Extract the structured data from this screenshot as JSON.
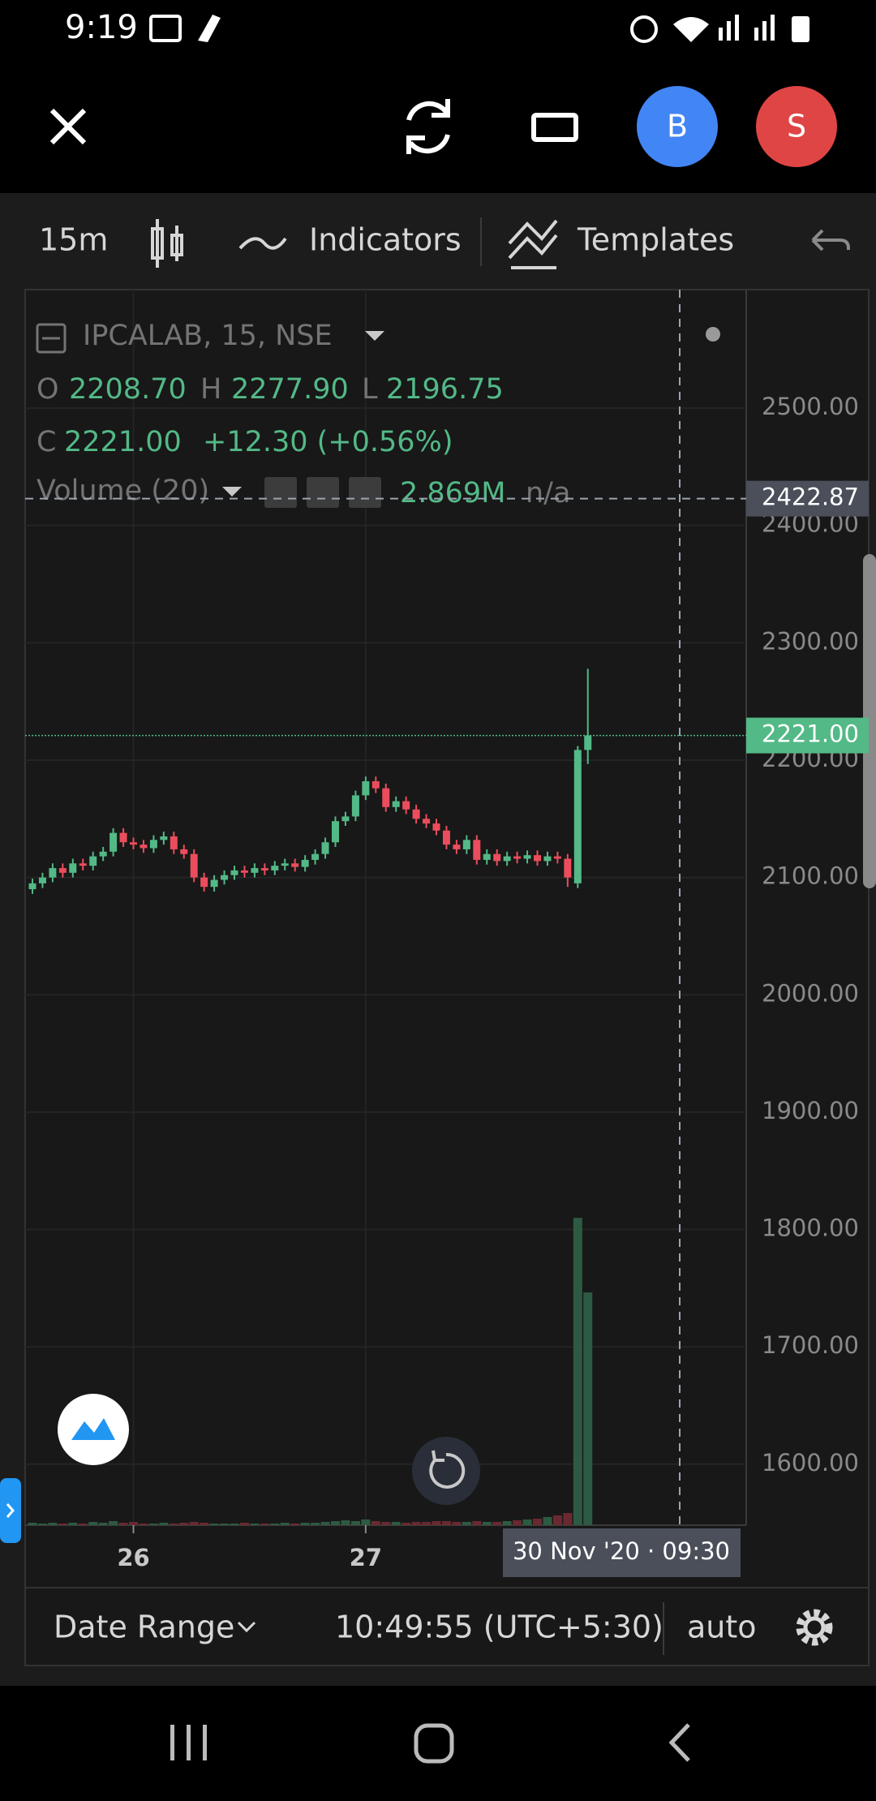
{
  "status_bar": {
    "time": "9:19"
  },
  "top_bar": {
    "avatars": [
      "B",
      "S"
    ]
  },
  "toolbar": {
    "interval": "15m",
    "indicators": "Indicators",
    "templates": "Templates"
  },
  "legend": {
    "symbol": "IPCALAB, 15, NSE",
    "ohlc": [
      {
        "label": "O",
        "value": "2208.70"
      },
      {
        "label": "H",
        "value": "2277.90"
      },
      {
        "label": "L",
        "value": "2196.75"
      },
      {
        "label": "C",
        "value": "2221.00"
      }
    ],
    "change": "+12.30 (+0.56%)",
    "volume_title": "Volume (20)",
    "volume_value": "2.869M",
    "volume_ma": "n/a"
  },
  "chart_data": {
    "type": "candlestick",
    "categories": [
      null,
      null,
      null,
      null,
      null,
      null,
      null,
      null,
      null,
      null,
      "26",
      null,
      null,
      null,
      null,
      null,
      null,
      null,
      null,
      null,
      null,
      null,
      null,
      null,
      null,
      null,
      null,
      null,
      null,
      null,
      null,
      null,
      null,
      "27",
      null,
      null,
      null,
      null,
      null,
      null,
      null,
      null,
      null,
      null,
      null,
      null,
      null,
      null,
      null,
      null,
      null,
      null,
      null,
      null,
      null,
      null
    ],
    "open": [
      2090,
      2095,
      2100,
      2108,
      2104,
      2112,
      2110,
      2118,
      2122,
      2138,
      2130,
      2128,
      2125,
      2132,
      2135,
      2124,
      2120,
      2100,
      2092,
      2098,
      2102,
      2106,
      2104,
      2108,
      2106,
      2110,
      2112,
      2109,
      2115,
      2120,
      2130,
      2148,
      2152,
      2170,
      2182,
      2176,
      2160,
      2165,
      2158,
      2150,
      2146,
      2140,
      2128,
      2124,
      2132,
      2115,
      2120,
      2114,
      2118,
      2116,
      2119,
      2114,
      2118,
      2116,
      2095,
      2208.7
    ],
    "high": [
      2099,
      2104,
      2112,
      2112,
      2116,
      2116,
      2122,
      2126,
      2142,
      2142,
      2134,
      2132,
      2136,
      2139,
      2139,
      2128,
      2124,
      2104,
      2102,
      2106,
      2110,
      2110,
      2112,
      2112,
      2114,
      2116,
      2116,
      2119,
      2124,
      2134,
      2152,
      2156,
      2174,
      2186,
      2186,
      2180,
      2169,
      2169,
      2162,
      2154,
      2150,
      2144,
      2132,
      2136,
      2136,
      2124,
      2124,
      2122,
      2122,
      2123,
      2123,
      2122,
      2122,
      2120,
      2212,
      2277.9
    ],
    "low": [
      2086,
      2091,
      2096,
      2100,
      2100,
      2106,
      2106,
      2114,
      2118,
      2126,
      2124,
      2121,
      2121,
      2128,
      2120,
      2116,
      2096,
      2088,
      2088,
      2094,
      2098,
      2100,
      2100,
      2102,
      2102,
      2106,
      2105,
      2105,
      2111,
      2116,
      2126,
      2144,
      2148,
      2166,
      2172,
      2156,
      2156,
      2154,
      2146,
      2142,
      2136,
      2124,
      2120,
      2120,
      2111,
      2111,
      2110,
      2110,
      2112,
      2112,
      2110,
      2110,
      2112,
      2092,
      2091,
      2196.75
    ],
    "close": [
      2095,
      2100,
      2108,
      2104,
      2112,
      2110,
      2118,
      2122,
      2138,
      2130,
      2128,
      2125,
      2132,
      2135,
      2124,
      2120,
      2100,
      2092,
      2098,
      2102,
      2106,
      2104,
      2108,
      2106,
      2110,
      2112,
      2109,
      2115,
      2120,
      2130,
      2148,
      2152,
      2170,
      2182,
      2176,
      2160,
      2165,
      2158,
      2150,
      2146,
      2140,
      2128,
      2124,
      2132,
      2115,
      2120,
      2114,
      2118,
      2116,
      2119,
      2114,
      2118,
      2116,
      2100,
      2208.7,
      2221
    ],
    "volume": [
      0.03,
      0.02,
      0.03,
      0.02,
      0.03,
      0.02,
      0.04,
      0.03,
      0.05,
      0.03,
      0.04,
      0.02,
      0.02,
      0.03,
      0.02,
      0.03,
      0.04,
      0.03,
      0.02,
      0.02,
      0.02,
      0.03,
      0.02,
      0.02,
      0.02,
      0.03,
      0.02,
      0.03,
      0.03,
      0.04,
      0.05,
      0.06,
      0.05,
      0.07,
      0.05,
      0.04,
      0.04,
      0.03,
      0.04,
      0.04,
      0.05,
      0.05,
      0.04,
      0.04,
      0.05,
      0.04,
      0.04,
      0.05,
      0.06,
      0.07,
      0.08,
      0.1,
      0.12,
      0.15,
      3.788,
      2.869
    ],
    "up_color": "#53b987",
    "down_color": "#eb4d5c",
    "volume_up_color": "#2d5a42",
    "volume_down_color": "#6a2930",
    "ylim": [
      1548,
      2601
    ],
    "yticks": [
      {
        "value": 1600,
        "label": "1600.00"
      },
      {
        "value": 1700,
        "label": "1700.00"
      },
      {
        "value": 1800,
        "label": "1800.00"
      },
      {
        "value": 1900,
        "label": "1900.00"
      },
      {
        "value": 2000,
        "label": "2000.00"
      },
      {
        "value": 2100,
        "label": "2100.00"
      },
      {
        "value": 2200,
        "label": "2200.00"
      },
      {
        "value": 2300,
        "label": "2300.00"
      },
      {
        "value": 2400,
        "label": "2400.00"
      },
      {
        "value": 2500,
        "label": "2500.00"
      }
    ],
    "grid": true,
    "last_price": {
      "value": 2221,
      "label": "2221.00"
    },
    "crosshair": {
      "price": {
        "value": 2422.87,
        "label": "2422.87"
      },
      "time": "30 Nov '20 · 09:30"
    }
  },
  "bottom_bar": {
    "date_range": "Date Range",
    "clock": "10:49:55 (UTC+5:30)",
    "scale": "auto"
  }
}
